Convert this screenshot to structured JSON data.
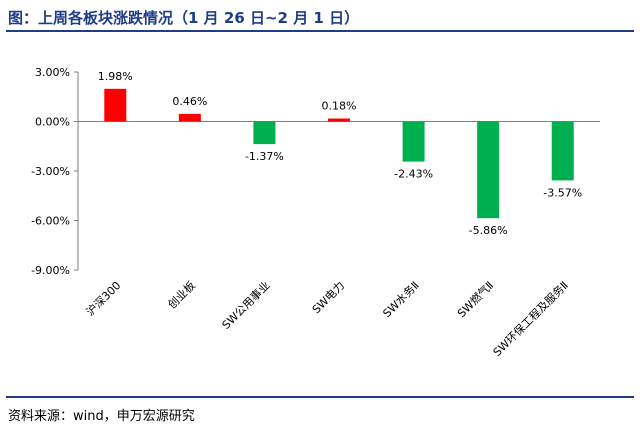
{
  "header": {
    "title": "图：上周各板块涨跌情况（1 月 26 日~2 月 1 日）"
  },
  "footer": {
    "source": "资料来源：wind，申万宏源研究"
  },
  "colors": {
    "positive": "#ff0000",
    "negative": "#00b050",
    "axis": "#7f7f7f",
    "accent": "#1f3c88"
  },
  "chart_data": {
    "type": "bar",
    "title": "",
    "xlabel": "",
    "ylabel": "",
    "categories": [
      "沪深300",
      "创业板",
      "SW公用事业",
      "SW电力",
      "SW水务Ⅱ",
      "SW燃气Ⅱ",
      "SW环保工程及服务Ⅱ"
    ],
    "values": [
      1.98,
      0.46,
      -1.37,
      0.18,
      -2.43,
      -5.86,
      -3.57
    ],
    "value_labels": [
      "1.98%",
      "0.46%",
      "-1.37%",
      "0.18%",
      "-2.43%",
      "-5.86%",
      "-3.57%"
    ],
    "yticks": [
      3,
      0,
      -3,
      -6,
      -9
    ],
    "ytick_labels": [
      "3.00%",
      "0.00%",
      "-3.00%",
      "-6.00%",
      "-9.00%"
    ],
    "ylim": [
      -9,
      3
    ],
    "grid": false,
    "legend": "none"
  }
}
